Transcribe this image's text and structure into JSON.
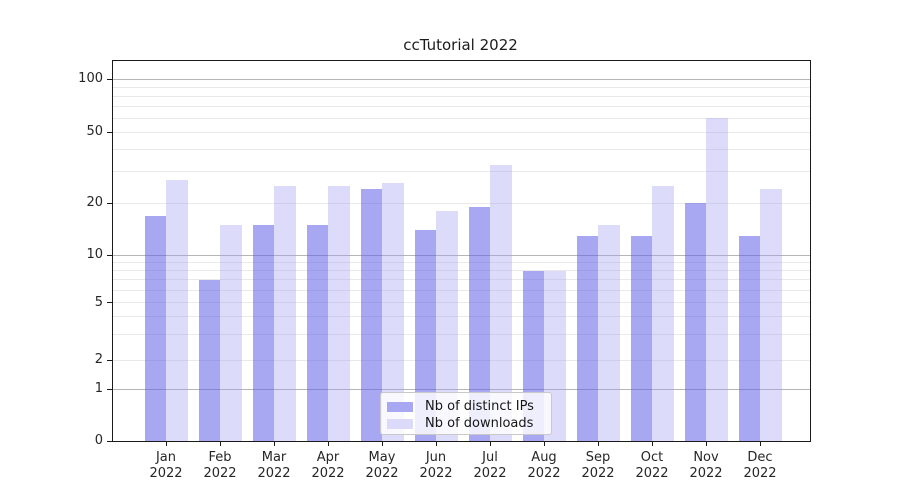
{
  "title": "ccTutorial 2022",
  "chart_data": {
    "type": "bar",
    "title": "ccTutorial 2022",
    "categories": [
      "Jan",
      "Feb",
      "Mar",
      "Apr",
      "May",
      "Jun",
      "Jul",
      "Aug",
      "Sep",
      "Oct",
      "Nov",
      "Dec"
    ],
    "year_label": "2022",
    "series": [
      {
        "name": "Nb of distinct IPs",
        "values": [
          17,
          7,
          15,
          15,
          24,
          14,
          19,
          8,
          13,
          13,
          20,
          13
        ],
        "fill": "rgba(97,97,232,0.55)",
        "swatch": "#a7a7f2"
      },
      {
        "name": "Nb of downloads",
        "values": [
          27,
          15,
          25,
          25,
          26,
          18,
          33,
          8,
          15,
          25,
          60,
          24
        ],
        "fill": "rgba(160,160,242,0.37)",
        "swatch": "#dbdbf9"
      }
    ],
    "xlabel": "",
    "ylabel": "",
    "y_ticks": [
      0,
      1,
      2,
      5,
      10,
      20,
      50,
      100
    ],
    "ylim": [
      0,
      130
    ],
    "yscale": "symlog-like",
    "grid": true,
    "grid_values_major": [
      1,
      10,
      100
    ],
    "grid_values_minor": [
      2,
      3,
      4,
      5,
      6,
      7,
      8,
      9,
      20,
      30,
      40,
      50,
      60,
      70,
      80,
      90
    ],
    "legend_position": "lower center",
    "colors": {
      "grid_major": "#b5b5b5",
      "grid_minor": "#e9e9e9",
      "axis": "#1a1a1a",
      "text": "#262626"
    },
    "scale_anchors": {
      "values": [
        0,
        1,
        2,
        5,
        10,
        20,
        50,
        100
      ],
      "fracs": [
        0,
        0.1361,
        0.2124,
        0.3637,
        0.4887,
        0.6255,
        0.8124,
        0.9518
      ]
    }
  }
}
